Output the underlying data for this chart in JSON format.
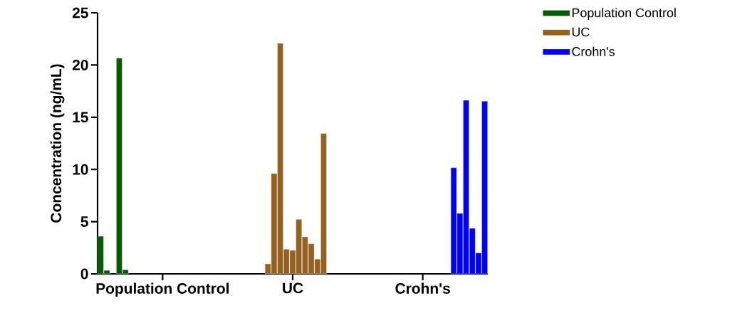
{
  "chart_data": {
    "type": "bar",
    "ylabel": "Concentration (ng/mL)",
    "categories": [
      null,
      null,
      null,
      null,
      null,
      null,
      null,
      null,
      null,
      null,
      "Population Control",
      null,
      null,
      null,
      null,
      null,
      null,
      null,
      null,
      null,
      null,
      null,
      null,
      null,
      null,
      null,
      null,
      null,
      null,
      null,
      null,
      "UC",
      null,
      null,
      null,
      null,
      null,
      null,
      null,
      null,
      null,
      null,
      null,
      null,
      null,
      null,
      null,
      null,
      null,
      null,
      null,
      null,
      "Crohn's",
      null,
      null,
      null,
      null,
      null,
      null,
      null,
      null,
      null,
      null
    ],
    "ylim": [
      0,
      25
    ],
    "yticks": [
      0,
      5,
      10,
      15,
      20,
      25
    ],
    "legend": "top right",
    "series": [
      {
        "name": "Population Control",
        "color": "#005c00",
        "values": [
          3.6,
          0.33,
          null,
          20.66,
          0.39,
          null,
          null,
          null,
          null,
          null,
          null,
          null,
          null,
          null,
          null,
          null,
          null,
          null,
          null,
          null,
          null,
          null,
          null,
          null,
          null,
          null,
          null,
          null,
          null,
          null,
          null,
          null,
          null,
          null,
          null,
          null,
          null,
          null,
          null,
          null,
          null,
          null,
          null,
          null,
          null,
          null,
          null,
          null,
          null,
          null,
          null,
          null,
          null,
          null,
          null,
          null,
          null,
          null,
          null,
          null,
          null,
          null,
          null
        ]
      },
      {
        "name": "UC",
        "color": "#956120",
        "values": [
          null,
          null,
          null,
          null,
          null,
          null,
          null,
          null,
          null,
          null,
          null,
          null,
          null,
          null,
          null,
          null,
          null,
          null,
          null,
          null,
          null,
          null,
          null,
          null,
          null,
          null,
          null,
          0.95,
          9.6,
          22.07,
          2.36,
          2.25,
          5.22,
          3.54,
          2.88,
          1.41,
          13.44,
          null,
          null,
          null,
          null,
          null,
          null,
          null,
          null,
          null,
          null,
          null,
          null,
          null,
          null,
          null,
          null,
          null,
          null,
          null,
          null,
          null,
          null,
          null,
          null,
          null,
          null
        ]
      },
      {
        "name": "Crohn's",
        "color": "#0000ff",
        "values": [
          null,
          null,
          null,
          null,
          null,
          null,
          null,
          null,
          null,
          null,
          null,
          null,
          null,
          null,
          null,
          null,
          null,
          null,
          null,
          null,
          null,
          null,
          null,
          null,
          null,
          null,
          null,
          null,
          null,
          null,
          null,
          null,
          null,
          null,
          null,
          null,
          null,
          null,
          null,
          null,
          null,
          null,
          null,
          null,
          null,
          null,
          null,
          null,
          null,
          null,
          null,
          null,
          null,
          null,
          null,
          null,
          null,
          10.17,
          5.79,
          16.62,
          4.36,
          2.0,
          16.53
        ]
      }
    ]
  }
}
